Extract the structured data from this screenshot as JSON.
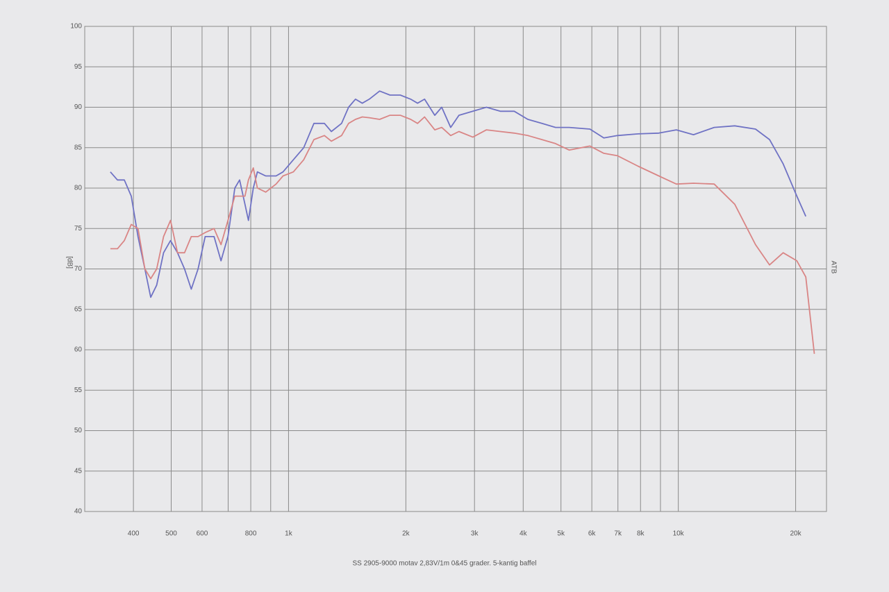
{
  "chart_data": {
    "type": "line",
    "caption": "SS 2905-9000 motav 2,83V/1m 0&45 grader. 5-kantig baffel",
    "y_label": "[dB]",
    "right_label": "ATB",
    "xscale": "log",
    "grid": true,
    "x": [
      349,
      364,
      379,
      395,
      411,
      428,
      443,
      459,
      478,
      498,
      519,
      541,
      563,
      586,
      611,
      644,
      671,
      699,
      728,
      749,
      773,
      789,
      812,
      832,
      874,
      929,
      968,
      1029,
      1094,
      1162,
      1236,
      1288,
      1368,
      1426,
      1485,
      1546,
      1611,
      1713,
      1821,
      1936,
      2058,
      2143,
      2234,
      2373,
      2472,
      2606,
      2737,
      2971,
      3220,
      3494,
      3793,
      4112,
      4467,
      4842,
      5248,
      5934,
      6441,
      6982,
      7889,
      8913,
      9886,
      10940,
      12360,
      13960,
      15780,
      17140,
      18580,
      20140,
      21240,
      22340
    ],
    "series": [
      {
        "color": "#6f72c4",
        "values": [
          82,
          81,
          81,
          79,
          74,
          70,
          66.5,
          68,
          72,
          73.5,
          72,
          70,
          67.5,
          70,
          74,
          74,
          71,
          74,
          80,
          81,
          78,
          76,
          80,
          82,
          81.5,
          81.5,
          82,
          83.5,
          85,
          88,
          88,
          87,
          88,
          90,
          91,
          90.5,
          91,
          92,
          91.5,
          91.5,
          91,
          90.5,
          91,
          89,
          90,
          87.5,
          89,
          89.5,
          90,
          89.5,
          89.5,
          88.5,
          88,
          87.5,
          87.5,
          87.3,
          86.2,
          86.5,
          86.7,
          86.8,
          87.2,
          86.6,
          87.5,
          87.7,
          87.3,
          86,
          83,
          79,
          76.5,
          null
        ]
      },
      {
        "color": "#d98585",
        "values": [
          72.5,
          72.5,
          73.5,
          75.5,
          75,
          70,
          68.8,
          70,
          74,
          76,
          72,
          72,
          74,
          74,
          74.5,
          75,
          73,
          76,
          79,
          79,
          79,
          81,
          82.5,
          80,
          79.5,
          80.5,
          81.5,
          82,
          83.5,
          86,
          86.5,
          85.8,
          86.5,
          88,
          88.5,
          88.8,
          88.7,
          88.5,
          89,
          89,
          88.5,
          88,
          88.8,
          87.2,
          87.5,
          86.5,
          87,
          86.3,
          87.2,
          87,
          86.8,
          86.5,
          86,
          85.5,
          84.7,
          85.2,
          84.3,
          84,
          82.7,
          81.5,
          80.5,
          80.6,
          80.5,
          78,
          73,
          70.5,
          72,
          71,
          69,
          59.5
        ]
      }
    ],
    "xlim": [
      300,
      24000
    ],
    "xticks": [
      400,
      500,
      600,
      800,
      {
        "value": 1000,
        "label": "1k"
      },
      {
        "value": 2000,
        "label": "2k"
      },
      {
        "value": 3000,
        "label": "3k"
      },
      {
        "value": 4000,
        "label": "4k"
      },
      {
        "value": 5000,
        "label": "5k"
      },
      {
        "value": 6000,
        "label": "6k"
      },
      {
        "value": 7000,
        "label": "7k"
      },
      {
        "value": 8000,
        "label": "8k"
      },
      {
        "value": 10000,
        "label": "10k"
      },
      {
        "value": 20000,
        "label": "20k"
      }
    ],
    "xminorgrid": [
      700,
      900,
      9000
    ],
    "ylim": [
      40,
      100
    ],
    "yticks": [
      40,
      45,
      50,
      55,
      60,
      65,
      70,
      75,
      80,
      85,
      90,
      95,
      100
    ]
  }
}
